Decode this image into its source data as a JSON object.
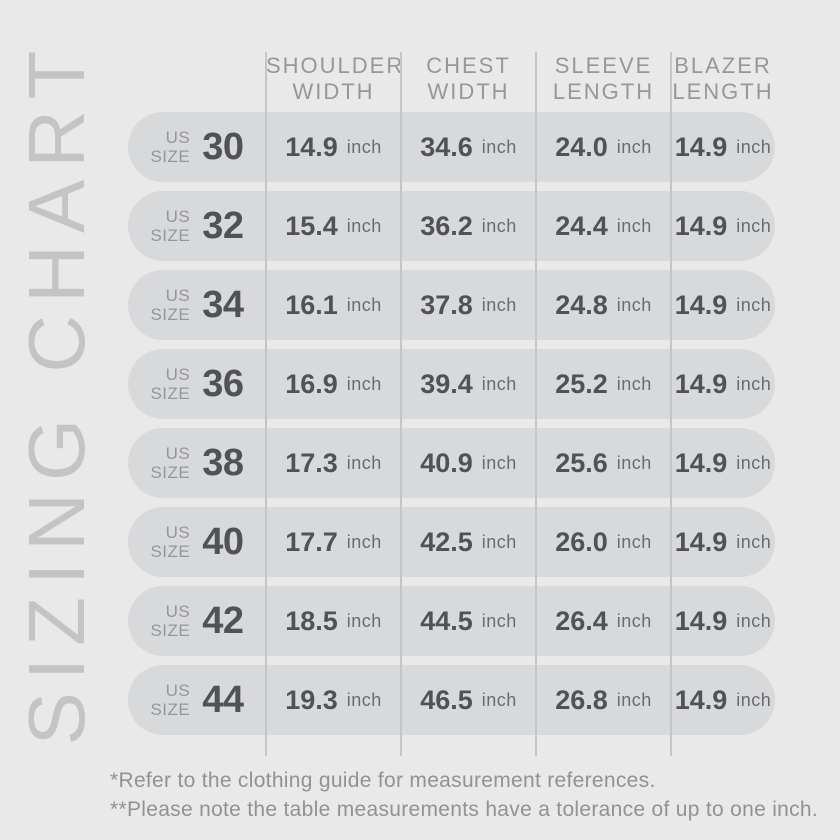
{
  "page": {
    "vertical_title": "SIZING CHART",
    "background_color": "#e9e9ea"
  },
  "colors": {
    "row_pill": "#d8d9db",
    "divider": "#c4c5c8",
    "title_text": "#c3c4c6",
    "muted_text": "#96979a",
    "dark_text": "#515257",
    "unit_text": "#6a6b6e",
    "footnote_text": "#919296"
  },
  "table": {
    "size_label_top": "US",
    "size_label_bottom": "SIZE",
    "unit": "inch",
    "columns": [
      {
        "line1": "SHOULDER",
        "line2": "WIDTH"
      },
      {
        "line1": "CHEST",
        "line2": "WIDTH"
      },
      {
        "line1": "SLEEVE",
        "line2": "LENGTH"
      },
      {
        "line1": "BLAZER",
        "line2": "LENGTH"
      }
    ],
    "rows": [
      {
        "size": "30",
        "values": [
          "14.9",
          "34.6",
          "24.0",
          "14.9"
        ]
      },
      {
        "size": "32",
        "values": [
          "15.4",
          "36.2",
          "24.4",
          "14.9"
        ]
      },
      {
        "size": "34",
        "values": [
          "16.1",
          "37.8",
          "24.8",
          "14.9"
        ]
      },
      {
        "size": "36",
        "values": [
          "16.9",
          "39.4",
          "25.2",
          "14.9"
        ]
      },
      {
        "size": "38",
        "values": [
          "17.3",
          "40.9",
          "25.6",
          "14.9"
        ]
      },
      {
        "size": "40",
        "values": [
          "17.7",
          "42.5",
          "26.0",
          "14.9"
        ]
      },
      {
        "size": "42",
        "values": [
          "18.5",
          "44.5",
          "26.4",
          "14.9"
        ]
      },
      {
        "size": "44",
        "values": [
          "19.3",
          "46.5",
          "26.8",
          "14.9"
        ]
      }
    ]
  },
  "footnotes": [
    "*Refer to the clothing guide for measurement references.",
    "**Please note the table measurements have a tolerance of up to one inch."
  ],
  "chart_data": {
    "type": "table",
    "title": "SIZING CHART",
    "columns": [
      "US Size",
      "Shoulder Width (inch)",
      "Chest Width (inch)",
      "Sleeve Length (inch)",
      "Blazer Length (inch)"
    ],
    "rows": [
      [
        30,
        14.9,
        34.6,
        24.0,
        14.9
      ],
      [
        32,
        15.4,
        36.2,
        24.4,
        14.9
      ],
      [
        34,
        16.1,
        37.8,
        24.8,
        14.9
      ],
      [
        36,
        16.9,
        39.4,
        25.2,
        14.9
      ],
      [
        38,
        17.3,
        40.9,
        25.6,
        14.9
      ],
      [
        40,
        17.7,
        42.5,
        26.0,
        14.9
      ],
      [
        42,
        18.5,
        44.5,
        26.4,
        14.9
      ],
      [
        44,
        19.3,
        46.5,
        26.8,
        14.9
      ]
    ],
    "notes": [
      "*Refer to the clothing guide for measurement references.",
      "**Please note the table measurements have a tolerance of up to one inch."
    ]
  }
}
